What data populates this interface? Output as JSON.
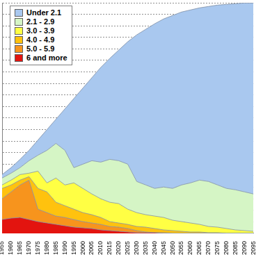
{
  "chart_data": {
    "type": "area",
    "stacked": true,
    "grid": true,
    "legend": "upper left",
    "tick_labels": "x",
    "categories": [
      1955,
      1960,
      1965,
      1970,
      1975,
      1980,
      1985,
      1990,
      1995,
      2000,
      2005,
      2010,
      2015,
      2020,
      2025,
      2030,
      2035,
      2040,
      2045,
      2050,
      2055,
      2060,
      2065,
      2070,
      2075,
      2080,
      2085,
      2090,
      2095
    ],
    "ylim": [
      0,
      10000
    ],
    "yticks": [
      0,
      500,
      1000,
      1500,
      2000,
      2500,
      3000,
      3500,
      4000,
      4500,
      5000,
      5500,
      6000,
      6500,
      7000,
      7500,
      8000,
      8500,
      9000,
      9500,
      10000
    ],
    "series": [
      {
        "name": "Under 2.1",
        "color": "#a9c8ef",
        "values": [
          150,
          240,
          360,
          450,
          660,
          900,
          1050,
          1800,
          3000,
          3300,
          3600,
          4110,
          4380,
          4800,
          5310,
          6360,
          6750,
          7140,
          7290,
          7500,
          7500,
          7500,
          7470,
          7590,
          7800,
          7980,
          8070,
          8190,
          8280
        ]
      },
      {
        "name": "2.1 - 2.9",
        "color": "#d5f5c5",
        "values": [
          300,
          300,
          300,
          540,
          690,
          1410,
          1500,
          1500,
          660,
          1050,
          1440,
          1590,
          1860,
          1860,
          1950,
          1350,
          1290,
          1200,
          1320,
          1380,
          1590,
          1740,
          1920,
          1950,
          1830,
          1740,
          1740,
          1680,
          1620
        ]
      },
      {
        "name": "3.0 - 3.9",
        "color": "#ffff44",
        "values": [
          150,
          210,
          240,
          150,
          750,
          390,
          1050,
          900,
          1140,
          1050,
          900,
          810,
          840,
          840,
          660,
          600,
          540,
          540,
          540,
          450,
          420,
          390,
          330,
          270,
          240,
          210,
          150,
          120,
          90
        ]
      },
      {
        "name": "4.0 - 4.9",
        "color": "#ffc20e",
        "values": [
          450,
          300,
          210,
          150,
          900,
          900,
          600,
          510,
          450,
          390,
          360,
          300,
          210,
          180,
          180,
          180,
          210,
          180,
          120,
          120,
          90,
          60,
          60,
          30,
          30,
          0,
          0,
          0,
          0
        ]
      },
      {
        "name": "5.0 - 5.9",
        "color": "#f7941d",
        "values": [
          900,
          1140,
          1410,
          1710,
          540,
          450,
          360,
          360,
          330,
          270,
          240,
          240,
          180,
          180,
          150,
          90,
          30,
          0,
          30,
          0,
          0,
          0,
          0,
          0,
          0,
          0,
          0,
          0,
          0
        ]
      },
      {
        "name": "6 and more",
        "color": "#e3140f",
        "values": [
          600,
          660,
          690,
          600,
          510,
          450,
          390,
          330,
          270,
          240,
          210,
          150,
          120,
          90,
          60,
          30,
          30,
          30,
          0,
          0,
          0,
          0,
          0,
          0,
          0,
          0,
          0,
          0,
          0
        ]
      }
    ]
  }
}
